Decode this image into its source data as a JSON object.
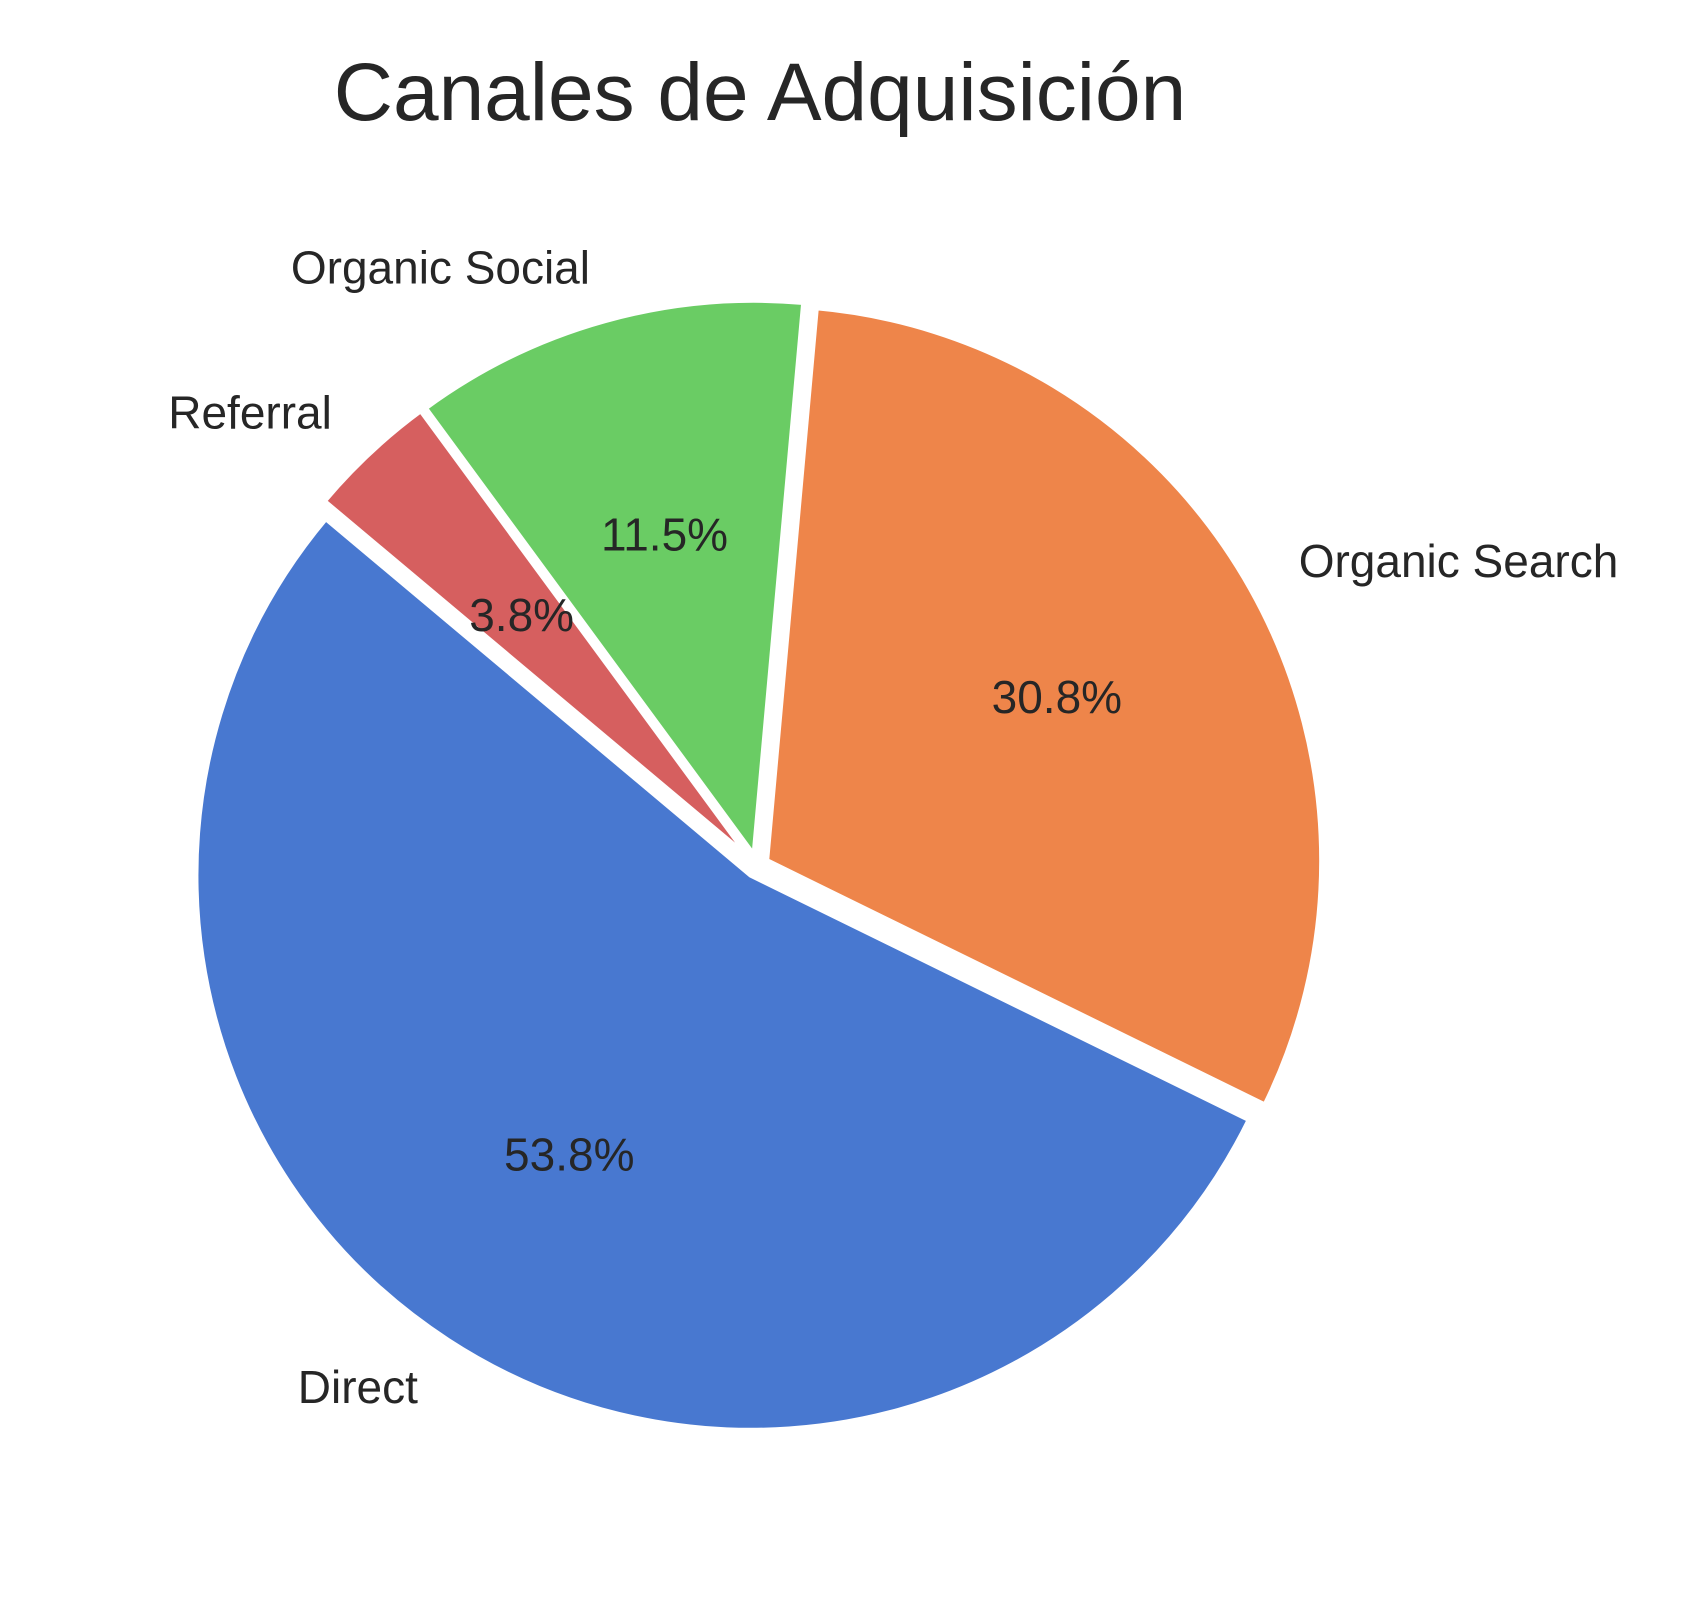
{
  "chart_data": {
    "type": "pie",
    "title": "Canales de Adquisición",
    "start_angle_deg": 140,
    "direction": "counterclockwise",
    "explode": [
      0.02,
      0.02,
      0.02,
      0.02
    ],
    "slices": [
      {
        "label": "Direct",
        "value": 53.8,
        "pct_label": "53.8%",
        "color": "#4878d0"
      },
      {
        "label": "Organic Search",
        "value": 30.8,
        "pct_label": "30.8%",
        "color": "#ee854a"
      },
      {
        "label": "Organic Social",
        "value": 11.5,
        "pct_label": "11.5%",
        "color": "#6acc64"
      },
      {
        "label": "Referral",
        "value": 3.8,
        "pct_label": "3.8%",
        "color": "#d65f5f"
      }
    ],
    "wedge_edge_color": "#ffffff"
  }
}
